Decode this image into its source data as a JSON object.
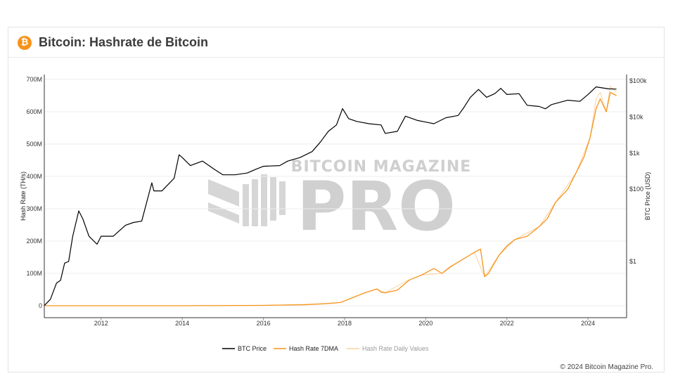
{
  "header": {
    "icon": "bitcoin-icon",
    "icon_glyph": "₿",
    "title": "Bitcoin: Hashrate de Bitcoin"
  },
  "watermark": {
    "line1": "BITCOIN MAGAZINE",
    "line2": "PRO"
  },
  "footer": {
    "copyright": "© 2024 Bitcoin Magazine Pro."
  },
  "colors": {
    "btc_price": "#000000",
    "hash_7dma": "#f7931a",
    "hash_daily": "#fbd29b"
  },
  "chart_data": {
    "type": "line",
    "title": "",
    "xlabel": "",
    "x_ticks": [
      "2012",
      "2014",
      "2016",
      "2018",
      "2020",
      "2022",
      "2024"
    ],
    "xlim": [
      2010.6,
      2024.95
    ],
    "y_left": {
      "label": "Hash Rate (TH/s)",
      "range": [
        0,
        700
      ],
      "ticks": [
        0,
        100,
        200,
        300,
        400,
        500,
        600,
        700
      ],
      "tick_labels": [
        "0",
        "100M",
        "200M",
        "300M",
        "400M",
        "500M",
        "600M",
        "700M"
      ]
    },
    "y_right": {
      "label": "BTC Price (USD)",
      "scale": "log",
      "range": [
        0.04,
        130000
      ],
      "ticks": [
        1,
        100,
        1000,
        10000,
        100000
      ],
      "tick_labels": [
        "$1",
        "$100",
        "$1k",
        "$10k",
        "$100k"
      ]
    },
    "legend": {
      "placement": "bottom-center"
    },
    "series": [
      {
        "name": "BTC Price",
        "axis": "right",
        "x": [
          2010.6,
          2010.75,
          2010.9,
          2011.0,
          2011.1,
          2011.2,
          2011.3,
          2011.45,
          2011.55,
          2011.7,
          2011.9,
          2012.0,
          2012.3,
          2012.6,
          2012.8,
          2013.0,
          2013.25,
          2013.3,
          2013.5,
          2013.8,
          2013.92,
          2014.0,
          2014.2,
          2014.5,
          2014.8,
          2015.0,
          2015.3,
          2015.6,
          2015.8,
          2016.0,
          2016.4,
          2016.6,
          2016.9,
          2017.2,
          2017.4,
          2017.6,
          2017.8,
          2017.95,
          2018.1,
          2018.3,
          2018.6,
          2018.9,
          2019.0,
          2019.3,
          2019.5,
          2019.8,
          2020.0,
          2020.2,
          2020.5,
          2020.8,
          2020.95,
          2021.1,
          2021.3,
          2021.5,
          2021.7,
          2021.85,
          2022.0,
          2022.3,
          2022.5,
          2022.8,
          2022.95,
          2023.1,
          2023.5,
          2023.8,
          2024.0,
          2024.2,
          2024.5,
          2024.7
        ],
        "values": [
          0.06,
          0.09,
          0.25,
          0.3,
          0.9,
          1.0,
          5,
          25,
          15,
          5,
          3.0,
          5,
          5,
          10,
          12,
          13,
          150,
          90,
          90,
          200,
          900,
          750,
          450,
          600,
          350,
          250,
          250,
          280,
          350,
          430,
          450,
          600,
          750,
          1100,
          2000,
          4000,
          6000,
          17000,
          9000,
          7500,
          6500,
          6000,
          3500,
          4000,
          10500,
          8000,
          7200,
          6500,
          9500,
          11000,
          19000,
          35000,
          58000,
          35000,
          44000,
          62000,
          42000,
          44000,
          21000,
          19500,
          16800,
          22000,
          29000,
          27000,
          42000,
          68000,
          60000,
          59000
        ]
      },
      {
        "name": "Hash Rate 7DMA",
        "axis": "left",
        "x": [
          2010.6,
          2012.0,
          2014.0,
          2016.0,
          2017.0,
          2017.5,
          2017.9,
          2018.2,
          2018.5,
          2018.8,
          2018.9,
          2019.0,
          2019.3,
          2019.6,
          2019.9,
          2020.2,
          2020.4,
          2020.6,
          2020.8,
          2021.0,
          2021.2,
          2021.35,
          2021.45,
          2021.55,
          2021.8,
          2022.0,
          2022.2,
          2022.5,
          2022.8,
          2023.0,
          2023.2,
          2023.5,
          2023.7,
          2023.9,
          2024.05,
          2024.2,
          2024.3,
          2024.45,
          2024.55,
          2024.7
        ],
        "values": [
          0,
          0.01,
          0.1,
          1,
          3,
          6,
          10,
          25,
          40,
          52,
          42,
          40,
          48,
          80,
          95,
          115,
          100,
          120,
          135,
          150,
          165,
          175,
          90,
          100,
          155,
          185,
          205,
          215,
          245,
          270,
          320,
          360,
          410,
          460,
          520,
          610,
          640,
          600,
          660,
          650
        ]
      },
      {
        "name": "Hash Rate Daily Values",
        "axis": "left",
        "x": [
          2010.6,
          2014.0,
          2016.0,
          2017.5,
          2017.9,
          2018.2,
          2018.5,
          2018.8,
          2019.0,
          2019.5,
          2019.9,
          2020.4,
          2020.8,
          2021.2,
          2021.45,
          2021.8,
          2022.2,
          2022.8,
          2023.2,
          2023.7,
          2024.05,
          2024.2,
          2024.3,
          2024.45,
          2024.55,
          2024.7
        ],
        "values": [
          0,
          0.1,
          1,
          6,
          10,
          25,
          40,
          52,
          40,
          75,
          95,
          100,
          135,
          165,
          90,
          155,
          205,
          245,
          320,
          410,
          520,
          640,
          660,
          600,
          680,
          660
        ]
      }
    ]
  }
}
